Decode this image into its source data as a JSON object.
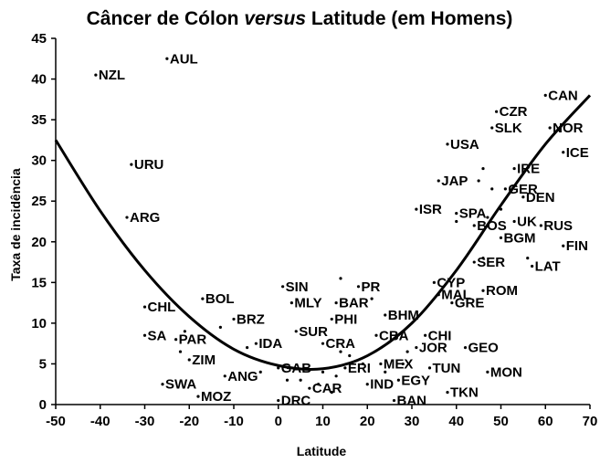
{
  "chart_data": {
    "type": "scatter",
    "title_parts": [
      {
        "text": "Câncer de Cólon ",
        "italic": false
      },
      {
        "text": "versus",
        "italic": true
      },
      {
        "text": " Latitude (em Homens)",
        "italic": false
      }
    ],
    "xlabel": "Latitude",
    "ylabel": "Taxa de incidência",
    "xlim": [
      -50,
      70
    ],
    "ylim": [
      0,
      45
    ],
    "xticks": [
      "-50",
      "-40",
      "-30",
      "-20",
      "-10",
      "0",
      "10",
      "20",
      "30",
      "40",
      "50",
      "60",
      "70"
    ],
    "yticks": [
      "0",
      "5",
      "10",
      "15",
      "20",
      "25",
      "30",
      "35",
      "40",
      "45"
    ],
    "grid": false,
    "points": [
      {
        "label": "AUL",
        "x": -25,
        "y": 42.5
      },
      {
        "label": "NZL",
        "x": -41,
        "y": 40.5
      },
      {
        "label": "URU",
        "x": -33,
        "y": 29.5
      },
      {
        "label": "ARG",
        "x": -34,
        "y": 23
      },
      {
        "label": "CHL",
        "x": -30,
        "y": 12
      },
      {
        "label": "SA",
        "x": -30,
        "y": 8.5
      },
      {
        "label": "PAR",
        "x": -23,
        "y": 8
      },
      {
        "label": "BOL",
        "x": -17,
        "y": 13
      },
      {
        "label": "BRZ",
        "x": -10,
        "y": 10.5
      },
      {
        "label": "ZIM",
        "x": -20,
        "y": 5.5
      },
      {
        "label": "SWA",
        "x": -26,
        "y": 2.5
      },
      {
        "label": "ANG",
        "x": -12,
        "y": 3.5
      },
      {
        "label": "MOZ",
        "x": -18,
        "y": 1
      },
      {
        "label": "IDA",
        "x": -5,
        "y": 7.5
      },
      {
        "label": "GAB",
        "x": 0,
        "y": 4.5
      },
      {
        "label": "DRC",
        "x": 0,
        "y": 0.5
      },
      {
        "label": "SIN",
        "x": 1,
        "y": 14.5
      },
      {
        "label": "MLY",
        "x": 3,
        "y": 12.5
      },
      {
        "label": "SUR",
        "x": 4,
        "y": 9
      },
      {
        "label": "PR",
        "x": 18,
        "y": 14.5
      },
      {
        "label": "BAR",
        "x": 13,
        "y": 12.5
      },
      {
        "label": "PHI",
        "x": 12,
        "y": 10.5
      },
      {
        "label": "CRA",
        "x": 10,
        "y": 7.5
      },
      {
        "label": "ERI",
        "x": 15,
        "y": 4.5
      },
      {
        "label": "CAR",
        "x": 7,
        "y": 2
      },
      {
        "label": "IND",
        "x": 20,
        "y": 2.5
      },
      {
        "label": "EGY",
        "x": 27,
        "y": 3
      },
      {
        "label": "BAN",
        "x": 26,
        "y": 0.5
      },
      {
        "label": "MEX",
        "x": 23,
        "y": 5
      },
      {
        "label": "CBA",
        "x": 22,
        "y": 8.5
      },
      {
        "label": "BHM",
        "x": 24,
        "y": 11
      },
      {
        "label": "CHI",
        "x": 33,
        "y": 8.5
      },
      {
        "label": "JOR",
        "x": 31,
        "y": 7
      },
      {
        "label": "TUN",
        "x": 34,
        "y": 4.5
      },
      {
        "label": "TKN",
        "x": 38,
        "y": 1.5
      },
      {
        "label": "MON",
        "x": 47,
        "y": 4
      },
      {
        "label": "GEO",
        "x": 42,
        "y": 7
      },
      {
        "label": "CYP",
        "x": 35,
        "y": 15
      },
      {
        "label": "MAL",
        "x": 36,
        "y": 13.5
      },
      {
        "label": "GRE",
        "x": 39,
        "y": 12.5
      },
      {
        "label": "ROM",
        "x": 46,
        "y": 14
      },
      {
        "label": "SER",
        "x": 44,
        "y": 17.5
      },
      {
        "label": "LAT",
        "x": 57,
        "y": 17
      },
      {
        "label": "ISR",
        "x": 31,
        "y": 24
      },
      {
        "label": "SPA",
        "x": 40,
        "y": 23.5
      },
      {
        "label": "BOS",
        "x": 44,
        "y": 22
      },
      {
        "label": "UK",
        "x": 53,
        "y": 22.5
      },
      {
        "label": "BGM",
        "x": 50,
        "y": 20.5
      },
      {
        "label": "RUS",
        "x": 59,
        "y": 22
      },
      {
        "label": "FIN",
        "x": 64,
        "y": 19.5
      },
      {
        "label": "DEN",
        "x": 55,
        "y": 25.5
      },
      {
        "label": "GER",
        "x": 51,
        "y": 26.5
      },
      {
        "label": "IRE",
        "x": 53,
        "y": 29
      },
      {
        "label": "JAP",
        "x": 36,
        "y": 27.5
      },
      {
        "label": "USA",
        "x": 38,
        "y": 32
      },
      {
        "label": "CZR",
        "x": 49,
        "y": 36
      },
      {
        "label": "SLK",
        "x": 48,
        "y": 34
      },
      {
        "label": "CAN",
        "x": 60,
        "y": 38
      },
      {
        "label": "NOR",
        "x": 61,
        "y": 34
      },
      {
        "label": "ICE",
        "x": 64,
        "y": 31
      }
    ],
    "unlabeled_points": [
      {
        "x": -13,
        "y": 9.5
      },
      {
        "x": -21,
        "y": 9
      },
      {
        "x": -22,
        "y": 6.5
      },
      {
        "x": -7,
        "y": 7
      },
      {
        "x": -4,
        "y": 4
      },
      {
        "x": 2,
        "y": 3
      },
      {
        "x": 5,
        "y": 3
      },
      {
        "x": 10,
        "y": 4
      },
      {
        "x": 13,
        "y": 3.5
      },
      {
        "x": 14,
        "y": 6.5
      },
      {
        "x": 16,
        "y": 6
      },
      {
        "x": 19,
        "y": 5
      },
      {
        "x": 24,
        "y": 4
      },
      {
        "x": 28,
        "y": 5
      },
      {
        "x": 29,
        "y": 6.5
      },
      {
        "x": 12,
        "y": 1.5
      },
      {
        "x": 9,
        "y": 2.5
      },
      {
        "x": 14,
        "y": 15.5
      },
      {
        "x": 21,
        "y": 13
      },
      {
        "x": 46,
        "y": 29
      },
      {
        "x": 48,
        "y": 26.5
      },
      {
        "x": 47,
        "y": 23
      },
      {
        "x": 40,
        "y": 22.5
      },
      {
        "x": 50,
        "y": 24
      },
      {
        "x": 46,
        "y": 18
      },
      {
        "x": 56,
        "y": 18
      },
      {
        "x": 45,
        "y": 27.5
      }
    ],
    "trend_curve": [
      {
        "x": -50,
        "y": 32.5
      },
      {
        "x": -40,
        "y": 23.8
      },
      {
        "x": -30,
        "y": 16.5
      },
      {
        "x": -20,
        "y": 10.8
      },
      {
        "x": -10,
        "y": 6.8
      },
      {
        "x": 0,
        "y": 4.8
      },
      {
        "x": 10,
        "y": 4.4
      },
      {
        "x": 20,
        "y": 6
      },
      {
        "x": 30,
        "y": 10
      },
      {
        "x": 40,
        "y": 16.5
      },
      {
        "x": 50,
        "y": 24.5
      },
      {
        "x": 60,
        "y": 32
      },
      {
        "x": 70,
        "y": 38
      }
    ]
  }
}
